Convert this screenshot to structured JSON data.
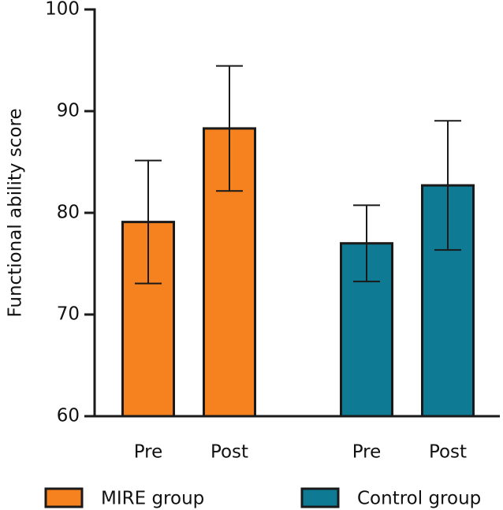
{
  "chart_data": {
    "type": "bar",
    "y_label": "Functional ability score",
    "categories": [
      "Pre",
      "Post"
    ],
    "series": [
      {
        "name": "MIRE group",
        "color": "#f5821f",
        "values": [
          79.1,
          88.3
        ],
        "errors": [
          6.05,
          6.15
        ]
      },
      {
        "name": "Control group",
        "color": "#0f7a94",
        "values": [
          77.0,
          82.7
        ],
        "errors": [
          3.75,
          6.35
        ]
      }
    ],
    "ylim": [
      60,
      100
    ],
    "yticks": [
      60,
      70,
      80,
      90,
      100
    ]
  }
}
